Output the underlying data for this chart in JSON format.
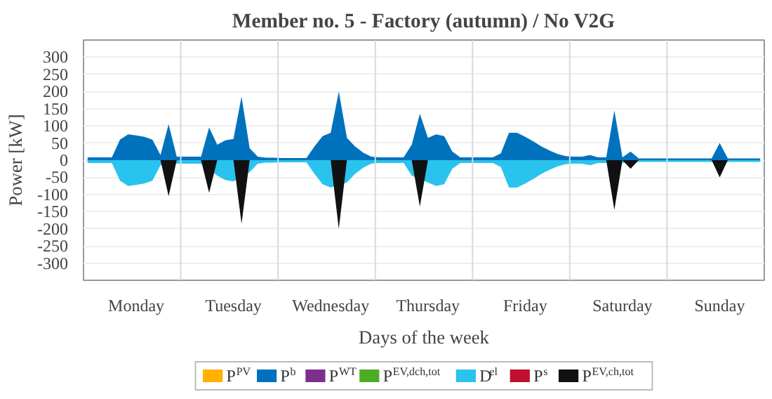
{
  "chart_data": {
    "type": "area",
    "title": "Member no. 5 - Factory (autumn) / No V2G",
    "xlabel": "Days of the week",
    "ylabel": "Power [kW]",
    "categories": [
      null,
      null,
      null,
      null,
      null,
      null,
      "Monday",
      null,
      null,
      null,
      null,
      null,
      null,
      null,
      null,
      null,
      null,
      null,
      "Tuesday",
      null,
      null,
      null,
      null,
      null,
      null,
      null,
      null,
      null,
      null,
      null,
      "Wednesday",
      null,
      null,
      null,
      null,
      null,
      null,
      null,
      null,
      null,
      null,
      null,
      "Thursday",
      null,
      null,
      null,
      null,
      null,
      null,
      null,
      null,
      null,
      null,
      null,
      "Friday",
      null,
      null,
      null,
      null,
      null,
      null,
      null,
      null,
      null,
      null,
      null,
      "Saturday",
      null,
      null,
      null,
      null,
      null,
      null,
      null,
      null,
      null,
      null,
      null,
      "Sunday",
      null,
      null,
      null,
      null,
      null
    ],
    "ylim": [
      -350,
      350
    ],
    "yticks": [
      -300,
      -250,
      -200,
      -150,
      -100,
      -50,
      0,
      50,
      100,
      150,
      200,
      250,
      300
    ],
    "grid": true,
    "legend": "bottom",
    "series": [
      {
        "name": "P$^{PV}$",
        "color": "#ffb000",
        "values": [
          null,
          null,
          null,
          null,
          null,
          null,
          null,
          null,
          null,
          null,
          null,
          null,
          null,
          null,
          null,
          null,
          null,
          null,
          null,
          null,
          null,
          null,
          null,
          null,
          null,
          null,
          null,
          null,
          null,
          null,
          null,
          null,
          null,
          null,
          null,
          null,
          null,
          null,
          null,
          null,
          null,
          null,
          null,
          null,
          null,
          null,
          null,
          null,
          null,
          null,
          null,
          null,
          null,
          null,
          null,
          null,
          null,
          null,
          null,
          null,
          null,
          null,
          null,
          null,
          null,
          null,
          null,
          null,
          null,
          null,
          null,
          null,
          null,
          null,
          null,
          null,
          null,
          null,
          null,
          null,
          null,
          null,
          null,
          null
        ]
      },
      {
        "name": "P$^{b}$",
        "color": "#0072bd",
        "values": [
          8,
          8,
          8,
          8,
          60,
          75,
          72,
          68,
          60,
          15,
          105,
          10,
          10,
          10,
          10,
          95,
          45,
          58,
          62,
          185,
          35,
          10,
          7,
          7,
          6,
          6,
          6,
          6,
          40,
          70,
          80,
          200,
          65,
          40,
          22,
          10,
          8,
          8,
          8,
          8,
          45,
          135,
          65,
          75,
          70,
          25,
          8,
          8,
          8,
          8,
          8,
          20,
          80,
          80,
          68,
          55,
          40,
          28,
          18,
          12,
          10,
          10,
          15,
          8,
          8,
          145,
          8,
          25,
          5,
          5,
          5,
          5,
          5,
          5,
          5,
          5,
          5,
          5,
          50,
          5,
          5,
          5,
          5,
          5
        ]
      },
      {
        "name": "P$^{WT}$",
        "color": "#7e2f8e",
        "values": [
          null,
          null,
          null,
          null,
          null,
          null,
          null,
          null,
          null,
          null,
          null,
          null,
          null,
          null,
          null,
          null,
          null,
          null,
          null,
          null,
          null,
          null,
          null,
          null,
          null,
          null,
          null,
          null,
          null,
          null,
          null,
          null,
          null,
          null,
          null,
          null,
          null,
          null,
          null,
          null,
          null,
          null,
          null,
          null,
          null,
          null,
          null,
          null,
          null,
          null,
          null,
          null,
          null,
          null,
          null,
          null,
          null,
          null,
          null,
          null,
          null,
          null,
          null,
          null,
          null,
          null,
          null,
          null,
          null,
          null,
          null,
          null,
          null,
          null,
          null,
          null,
          null,
          null,
          null,
          null,
          null,
          null,
          null,
          null
        ]
      },
      {
        "name": "P$^{EV,dch,tot}$",
        "color": "#4dac26",
        "values": [
          null,
          null,
          null,
          null,
          null,
          null,
          null,
          null,
          null,
          null,
          null,
          null,
          null,
          null,
          null,
          null,
          null,
          null,
          null,
          null,
          null,
          null,
          null,
          null,
          null,
          null,
          null,
          null,
          null,
          null,
          null,
          null,
          null,
          null,
          null,
          null,
          null,
          null,
          null,
          null,
          null,
          null,
          null,
          null,
          null,
          null,
          null,
          null,
          null,
          null,
          null,
          null,
          null,
          null,
          null,
          null,
          null,
          null,
          null,
          null,
          null,
          null,
          null,
          null,
          null,
          null,
          null,
          null,
          null,
          null,
          null,
          null,
          null,
          null,
          null,
          null,
          null,
          null,
          null,
          null,
          null,
          null,
          null,
          null
        ]
      },
      {
        "name": "D$^{el}$",
        "color": "#29c3ee",
        "values": [
          -8,
          -8,
          -8,
          -8,
          -60,
          -75,
          -72,
          -68,
          -60,
          -15,
          null,
          -10,
          -10,
          -10,
          -10,
          null,
          -45,
          -58,
          -62,
          null,
          -35,
          -10,
          -7,
          -7,
          -6,
          -6,
          -6,
          -6,
          -40,
          -70,
          -80,
          null,
          -65,
          -40,
          -22,
          -10,
          -8,
          -8,
          -8,
          -8,
          -45,
          null,
          -65,
          -75,
          -70,
          -25,
          -8,
          -8,
          -8,
          -8,
          -8,
          -20,
          -80,
          -80,
          -68,
          -55,
          -40,
          -28,
          -18,
          -12,
          -10,
          -10,
          -15,
          -8,
          -8,
          null,
          -8,
          null,
          -5,
          -5,
          -5,
          -5,
          -5,
          -5,
          -5,
          -5,
          -5,
          -5,
          -5,
          -5,
          -5,
          -5,
          -5,
          -5
        ]
      },
      {
        "name": "P$^{s}$",
        "color": "#c0102f",
        "values": [
          null,
          null,
          null,
          null,
          null,
          null,
          null,
          null,
          null,
          null,
          null,
          null,
          null,
          null,
          null,
          null,
          null,
          null,
          null,
          null,
          null,
          null,
          null,
          null,
          null,
          null,
          null,
          null,
          null,
          null,
          null,
          null,
          null,
          null,
          null,
          null,
          null,
          null,
          null,
          null,
          null,
          null,
          null,
          null,
          null,
          null,
          null,
          null,
          null,
          null,
          null,
          null,
          null,
          null,
          null,
          null,
          null,
          null,
          null,
          null,
          null,
          null,
          null,
          null,
          null,
          null,
          null,
          null,
          null,
          null,
          null,
          null,
          null,
          null,
          null,
          null,
          null,
          null,
          null,
          null,
          null,
          null,
          null,
          null
        ]
      },
      {
        "name": "P$^{EV,ch,tot}$",
        "color": "#111111",
        "values": [
          0,
          0,
          0,
          0,
          0,
          0,
          0,
          0,
          0,
          0,
          -105,
          0,
          0,
          0,
          0,
          -95,
          0,
          0,
          0,
          -185,
          0,
          0,
          0,
          0,
          0,
          0,
          0,
          0,
          0,
          0,
          0,
          -200,
          0,
          0,
          0,
          0,
          0,
          0,
          0,
          0,
          0,
          -135,
          0,
          0,
          0,
          0,
          0,
          0,
          0,
          0,
          0,
          0,
          0,
          0,
          0,
          0,
          0,
          0,
          0,
          0,
          0,
          0,
          0,
          0,
          0,
          -145,
          0,
          -25,
          0,
          0,
          0,
          0,
          0,
          0,
          0,
          0,
          0,
          0,
          -50,
          0,
          0,
          0,
          0,
          0
        ]
      }
    ]
  }
}
